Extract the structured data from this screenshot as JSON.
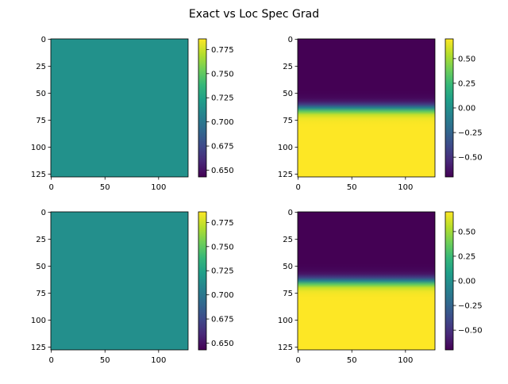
{
  "figure": {
    "title": "Exact vs Loc Spec Grad"
  },
  "colors": {
    "viridis_stops": [
      "#440154",
      "#482878",
      "#3e4989",
      "#31688e",
      "#26828e",
      "#1f9e89",
      "#35b779",
      "#6ece58",
      "#b5de2b",
      "#fde725"
    ],
    "axis": "#000000",
    "background": "#ffffff"
  },
  "chart_data": [
    {
      "type": "heatmap",
      "position": "top-left",
      "title": "",
      "xlabel": "",
      "ylabel": "",
      "image_shape": [
        128,
        128
      ],
      "x_ticks": [
        0,
        50,
        100
      ],
      "y_ticks": [
        0,
        25,
        50,
        75,
        100,
        125
      ],
      "xlim": [
        -0.5,
        127.5
      ],
      "ylim": [
        127.5,
        -0.5
      ],
      "y_inverted": true,
      "colormap": "viridis",
      "clim": [
        0.643,
        0.786
      ],
      "colorbar_ticks": [
        0.65,
        0.675,
        0.7,
        0.725,
        0.75,
        0.775
      ],
      "colorbar_tick_labels": [
        "0.650",
        "0.675",
        "0.700",
        "0.725",
        "0.750",
        "0.775"
      ],
      "pattern": "constant",
      "value": 0.715
    },
    {
      "type": "heatmap",
      "position": "top-right",
      "title": "",
      "xlabel": "",
      "ylabel": "",
      "image_shape": [
        128,
        128
      ],
      "x_ticks": [
        0,
        50,
        100
      ],
      "y_ticks": [
        0,
        25,
        50,
        75,
        100,
        125
      ],
      "xlim": [
        -0.5,
        127.5
      ],
      "ylim": [
        127.5,
        -0.5
      ],
      "y_inverted": true,
      "colormap": "viridis",
      "clim": [
        -0.7,
        0.7
      ],
      "colorbar_ticks": [
        -0.5,
        -0.25,
        0.0,
        0.25,
        0.5
      ],
      "colorbar_tick_labels": [
        "−0.50",
        "−0.25",
        "0.00",
        "0.25",
        "0.50"
      ],
      "pattern": "vertical-tanh",
      "low_value": -0.7,
      "high_value": 0.7,
      "transition_center_row": 64,
      "transition_width_rows": 5
    },
    {
      "type": "heatmap",
      "position": "bottom-left",
      "title": "",
      "xlabel": "",
      "ylabel": "",
      "image_shape": [
        128,
        128
      ],
      "x_ticks": [
        0,
        50,
        100
      ],
      "y_ticks": [
        0,
        25,
        50,
        75,
        100,
        125
      ],
      "xlim": [
        -0.5,
        127.5
      ],
      "ylim": [
        127.5,
        -0.5
      ],
      "y_inverted": true,
      "colormap": "viridis",
      "clim": [
        0.643,
        0.786
      ],
      "colorbar_ticks": [
        0.65,
        0.675,
        0.7,
        0.725,
        0.75,
        0.775
      ],
      "colorbar_tick_labels": [
        "0.650",
        "0.675",
        "0.700",
        "0.725",
        "0.750",
        "0.775"
      ],
      "pattern": "constant",
      "value": 0.714
    },
    {
      "type": "heatmap",
      "position": "bottom-right",
      "title": "",
      "xlabel": "",
      "ylabel": "",
      "image_shape": [
        128,
        128
      ],
      "x_ticks": [
        0,
        50,
        100
      ],
      "y_ticks": [
        0,
        25,
        50,
        75,
        100,
        125
      ],
      "xlim": [
        -0.5,
        127.5
      ],
      "ylim": [
        127.5,
        -0.5
      ],
      "y_inverted": true,
      "colormap": "viridis",
      "clim": [
        -0.7,
        0.7
      ],
      "colorbar_ticks": [
        -0.5,
        -0.25,
        0.0,
        0.25,
        0.5
      ],
      "colorbar_tick_labels": [
        "−0.50",
        "−0.25",
        "0.00",
        "0.25",
        "0.50"
      ],
      "pattern": "vertical-tanh",
      "low_value": -0.7,
      "high_value": 0.7,
      "transition_center_row": 64,
      "transition_width_rows": 5
    }
  ]
}
